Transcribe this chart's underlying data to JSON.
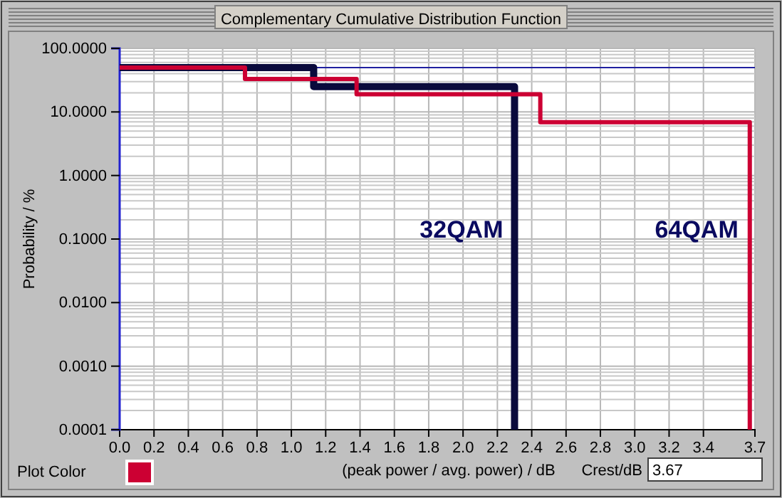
{
  "chart_data": {
    "type": "step",
    "title": "Complementary Cumulative Distribution Function",
    "xlabel": "(peak power / avg. power) / dB",
    "ylabel": "Probability / %",
    "series": [
      {
        "name": "32QAM",
        "color": "#0a0a3c",
        "x": [
          0,
          1.13,
          2.3,
          2.3
        ],
        "values": [
          50,
          25,
          25,
          0.0001
        ]
      },
      {
        "name": "64QAM",
        "color": "#cc0033",
        "x": [
          0,
          0.73,
          1.38,
          2.45,
          3.67,
          3.67
        ],
        "values": [
          50,
          33,
          19,
          6.9,
          6.9,
          0.0001
        ]
      }
    ],
    "log": true,
    "grid": true,
    "xlim": [
      0,
      3.7
    ],
    "ylim": [
      0.0001,
      100
    ],
    "xticks": [
      {
        "value": 0,
        "label": "0.0"
      },
      0.2,
      0.4,
      0.6,
      0.8,
      {
        "value": 1,
        "label": "1.0"
      },
      1.2,
      1.4,
      1.6,
      1.8,
      {
        "value": 2,
        "label": "2.0"
      },
      2.2,
      2.4,
      2.6,
      2.8,
      {
        "value": 3,
        "label": "3.0"
      },
      3.2,
      3.4,
      3.7
    ],
    "yticks": [
      {
        "value": 0.0001,
        "label": "0.0001"
      },
      {
        "value": 0.001,
        "label": "0.0010"
      },
      {
        "value": 0.01,
        "label": "0.0100"
      },
      {
        "value": 0.1,
        "label": "0.1000"
      },
      {
        "value": 1,
        "label": "1.0000"
      },
      {
        "value": 10,
        "label": "10.0000"
      },
      {
        "value": 100,
        "label": "100.0000"
      }
    ],
    "ref_lines": [
      {
        "axis": "y",
        "value": 50,
        "color": "#2020a0"
      }
    ],
    "annotations": [
      "Plot Color",
      "Crest/dB",
      "3.67"
    ]
  }
}
